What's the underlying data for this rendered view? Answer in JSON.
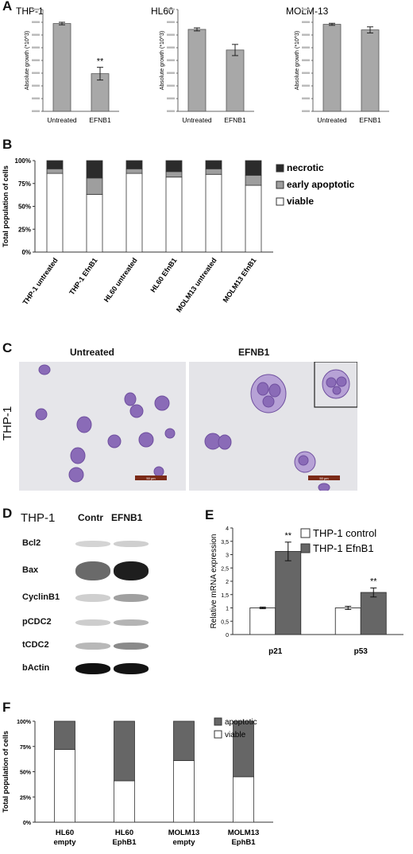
{
  "panels": {
    "a": "A",
    "b": "B",
    "c": "C",
    "d": "D",
    "e": "E",
    "f": "F"
  },
  "chart_data": [
    {
      "id": "A1",
      "type": "bar",
      "title": "THP-1",
      "categories": [
        "Untreated",
        "EFNB1"
      ],
      "values": [
        345,
        148
      ],
      "errors": [
        5,
        25
      ],
      "annotations": [
        "",
        "**"
      ],
      "ylabel": "Absolute growth (*10^3)",
      "ylim": [
        0,
        400
      ],
      "yticks": [
        "",
        "",
        "",
        "",
        "",
        "",
        "",
        "",
        ""
      ]
    },
    {
      "id": "A2",
      "type": "bar",
      "title": "HL60",
      "categories": [
        "Untreated",
        "EFNB1"
      ],
      "values": [
        322,
        241
      ],
      "errors": [
        6,
        22
      ],
      "annotations": [
        "",
        ""
      ],
      "ylabel": "Absolute growth (*10^3)",
      "ylim": [
        0,
        400
      ],
      "yticks": [
        "",
        "",
        "",
        "",
        "",
        "",
        "",
        "",
        ""
      ]
    },
    {
      "id": "A3",
      "type": "bar",
      "title": "MOLM-13",
      "categories": [
        "Untreated",
        "EFNB1"
      ],
      "values": [
        342,
        320
      ],
      "errors": [
        4,
        12
      ],
      "annotations": [
        "",
        ""
      ],
      "ylabel": "Absolute growth (*10^3)",
      "ylim": [
        0,
        400
      ],
      "yticks": [
        "",
        "",
        "",
        "",
        "",
        "",
        "",
        "",
        ""
      ]
    },
    {
      "id": "B",
      "type": "bar",
      "stacked": true,
      "categories": [
        "THP-1 untreated",
        "THP-1 EfnB1",
        "HL60 untreated",
        "HL60 EfnB1",
        "MOLM13 untreated",
        "MOLM13 EfnB1"
      ],
      "series": [
        {
          "name": "viable",
          "color": "#ffffff",
          "values": [
            86,
            63,
            86,
            82,
            85,
            73
          ]
        },
        {
          "name": "early apoptotic",
          "color": "#9e9e9e",
          "values": [
            5,
            18,
            5,
            6,
            6,
            11
          ]
        },
        {
          "name": "necrotic",
          "color": "#2b2b2b",
          "values": [
            9,
            19,
            9,
            12,
            9,
            16
          ]
        }
      ],
      "legend_order": [
        "necrotic",
        "early apoptotic",
        "viable"
      ],
      "ylabel": "Total population of cells",
      "yticks": [
        "0%",
        "25%",
        "50%",
        "75%",
        "100%"
      ],
      "ylim": [
        0,
        100
      ],
      "legend": "right"
    },
    {
      "id": "E",
      "type": "bar",
      "categories": [
        "p21",
        "p53"
      ],
      "series": [
        {
          "name": "THP-1 control",
          "color": "#ffffff",
          "values": [
            1.0,
            1.0
          ],
          "errors": [
            0.03,
            0.06
          ]
        },
        {
          "name": "THP-1 EfnB1",
          "color": "#666666",
          "values": [
            3.12,
            1.58
          ],
          "errors": [
            0.35,
            0.17
          ]
        }
      ],
      "annotations": [
        "**",
        "**"
      ],
      "ylabel": "Relative mRNA expression",
      "yticks": [
        "0",
        "0,5",
        "1",
        "1,5",
        "2",
        "2,5",
        "3",
        "3,5",
        "4"
      ],
      "ylim": [
        0,
        4
      ],
      "legend": "top-right"
    },
    {
      "id": "F",
      "type": "bar",
      "stacked": true,
      "categories": [
        "HL60 empty",
        "HL60 EphB1",
        "MOLM13 empty",
        "MOLM13 EphB1"
      ],
      "series": [
        {
          "name": "viable",
          "color": "#ffffff",
          "values": [
            72,
            41,
            61,
            45
          ]
        },
        {
          "name": "apoptotic",
          "color": "#666666",
          "values": [
            28,
            59,
            39,
            55
          ]
        }
      ],
      "legend_order": [
        "apoptotic",
        "viable"
      ],
      "ylabel": "Total population of cells",
      "yticks": [
        "0%",
        "25%",
        "50%",
        "75%",
        "100%"
      ],
      "ylim": [
        0,
        100
      ],
      "legend": "top-right"
    }
  ],
  "micro": {
    "untreated_label": "Untreated",
    "efnb1_label": "EFNB1",
    "side_label": "THP-1",
    "scale_bar": "50 µm"
  },
  "blot": {
    "title": "THP-1",
    "col1": "Contr",
    "col2": "EFNB1",
    "rows": [
      "Bcl2",
      "Bax",
      "CyclinB1",
      "pCDC2",
      "tCDC2",
      "bActin"
    ]
  }
}
